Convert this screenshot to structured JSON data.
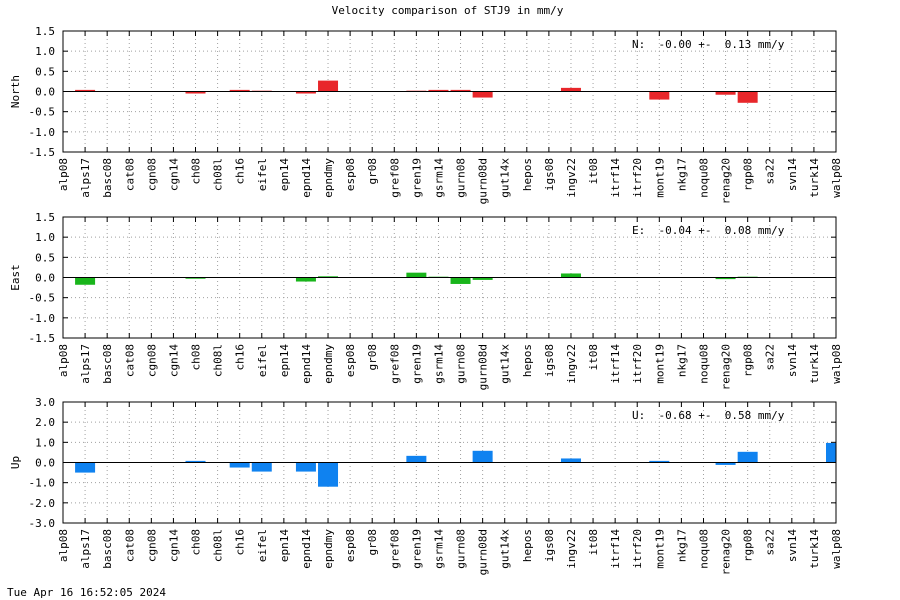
{
  "title": "Velocity comparison of STJ9 in mm/y",
  "timestamp": "Tue Apr 16 16:52:05 2024",
  "chart_data": [
    {
      "type": "bar",
      "ylabel": "North",
      "summary": "N:  -0.00 +-  0.13 mm/y",
      "color": "#e8262a",
      "ylim": [
        -1.5,
        1.5
      ],
      "yticks": [
        "1.5",
        "1.0",
        "0.5",
        "0.0",
        "-0.5",
        "-1.0",
        "-1.5"
      ],
      "categories": [
        "alp08",
        "alps17",
        "basc08",
        "cat08",
        "cgn08",
        "cgn14",
        "ch08",
        "ch08l",
        "ch16",
        "eifel",
        "epn14",
        "epnd14",
        "epndmy",
        "esp08",
        "gr08",
        "gref08",
        "gren19",
        "gsrm14",
        "gurn08",
        "gurn08d",
        "gut14x",
        "hepos",
        "igs08",
        "ingv22",
        "it08",
        "itrf14",
        "itrf20",
        "mont19",
        "nkg17",
        "noqu08",
        "renag20",
        "rgp08",
        "sa22",
        "svn14",
        "turk14",
        "walp08"
      ],
      "values": [
        0,
        0.04,
        0,
        0,
        0,
        0,
        -0.05,
        0,
        0.04,
        0.02,
        0,
        -0.05,
        0.27,
        0,
        0,
        0,
        0.02,
        0.04,
        0.04,
        -0.15,
        0,
        0,
        0,
        0.09,
        0,
        0,
        0,
        -0.2,
        0,
        0,
        -0.08,
        -0.28,
        0,
        0,
        0,
        0
      ]
    },
    {
      "type": "bar",
      "ylabel": "East",
      "summary": "E:  -0.04 +-  0.08 mm/y",
      "color": "#19b51b",
      "ylim": [
        -1.5,
        1.5
      ],
      "yticks": [
        "1.5",
        "1.0",
        "0.5",
        "0.0",
        "-0.5",
        "-1.0",
        "-1.5"
      ],
      "categories": [
        "alp08",
        "alps17",
        "basc08",
        "cat08",
        "cgn08",
        "cgn14",
        "ch08",
        "ch08l",
        "ch16",
        "eifel",
        "epn14",
        "epnd14",
        "epndmy",
        "esp08",
        "gr08",
        "gref08",
        "gren19",
        "gsrm14",
        "gurn08",
        "gurn08d",
        "gut14x",
        "hepos",
        "igs08",
        "ingv22",
        "it08",
        "itrf14",
        "itrf20",
        "mont19",
        "nkg17",
        "noqu08",
        "renag20",
        "rgp08",
        "sa22",
        "svn14",
        "turk14",
        "walp08"
      ],
      "values": [
        0,
        -0.18,
        0,
        0,
        0,
        0,
        -0.03,
        0,
        0,
        0,
        0,
        -0.1,
        0.03,
        0,
        0,
        0,
        0.12,
        0.02,
        -0.16,
        -0.06,
        0,
        0,
        0,
        0.1,
        0,
        0,
        0,
        0,
        0,
        0,
        -0.04,
        0.02,
        0,
        0,
        0,
        0
      ]
    },
    {
      "type": "bar",
      "ylabel": "Up",
      "summary": "U:  -0.68 +-  0.58 mm/y",
      "color": "#0f82f0",
      "ylim": [
        -3.0,
        3.0
      ],
      "yticks": [
        "3.0",
        "2.0",
        "1.0",
        "0.0",
        "-1.0",
        "-2.0",
        "-3.0"
      ],
      "categories": [
        "alp08",
        "alps17",
        "basc08",
        "cat08",
        "cgn08",
        "cgn14",
        "ch08",
        "ch08l",
        "ch16",
        "eifel",
        "epn14",
        "epnd14",
        "epndmy",
        "esp08",
        "gr08",
        "gref08",
        "gren19",
        "gsrm14",
        "gurn08",
        "gurn08d",
        "gut14x",
        "hepos",
        "igs08",
        "ingv22",
        "it08",
        "itrf14",
        "itrf20",
        "mont19",
        "nkg17",
        "noqu08",
        "renag20",
        "rgp08",
        "sa22",
        "svn14",
        "turk14",
        "walp08"
      ],
      "values": [
        0,
        -0.5,
        0,
        0,
        0,
        0,
        0.08,
        0,
        -0.25,
        -0.45,
        0,
        -0.45,
        -1.2,
        0,
        0,
        0,
        0.33,
        0,
        0,
        0.58,
        0,
        0,
        0,
        0.2,
        0,
        0,
        0,
        0.08,
        0,
        0,
        -0.12,
        0.53,
        0,
        0,
        0,
        0.97
      ]
    }
  ]
}
